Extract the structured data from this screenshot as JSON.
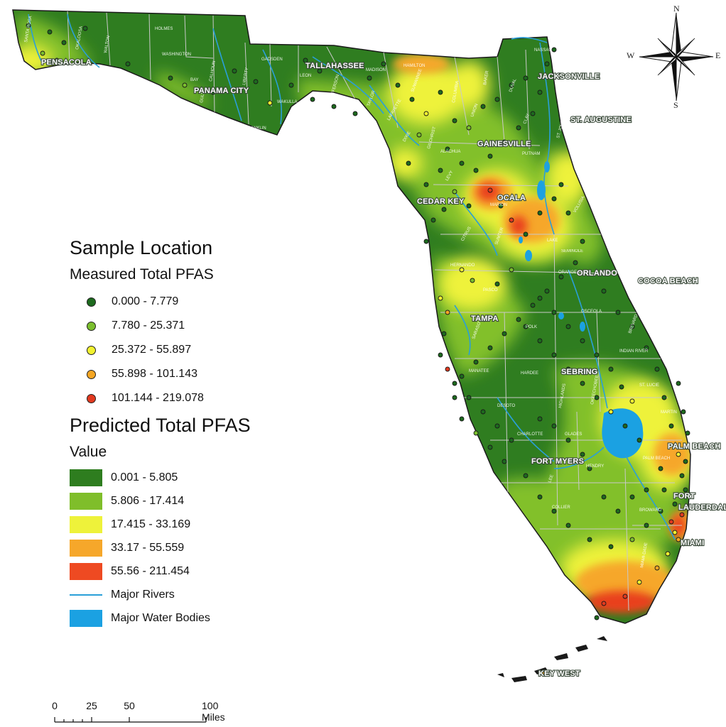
{
  "legend": {
    "sample_title": "Sample Location",
    "measured_title": "Measured Total PFAS",
    "measured_classes": [
      {
        "label": "0.000 - 7.779",
        "color": "#1d6a1e"
      },
      {
        "label": "7.780 - 25.371",
        "color": "#7bbf2e"
      },
      {
        "label": "25.372 - 55.897",
        "color": "#f2f230"
      },
      {
        "label": "55.898 - 101.143",
        "color": "#f5a623"
      },
      {
        "label": "101.144 - 219.078",
        "color": "#e2391f"
      }
    ],
    "predicted_title": "Predicted Total PFAS",
    "value_label": "Value",
    "predicted_classes": [
      {
        "label": "0.001 - 5.805",
        "color": "#2e7d1f"
      },
      {
        "label": "5.806 - 17.414",
        "color": "#7fbe2a"
      },
      {
        "label": "17.415 - 33.169",
        "color": "#eef23a"
      },
      {
        "label": "33.17 - 55.559",
        "color": "#f6a72a"
      },
      {
        "label": "55.56 - 211.454",
        "color": "#ee4a22"
      }
    ],
    "rivers_label": "Major Rivers",
    "water_label": "Major Water Bodies",
    "river_color": "#2a9fd8",
    "water_color": "#1ba1e2"
  },
  "cities": {
    "pensacola": "PENSACOLA",
    "panama_city": "PANAMA CITY",
    "tallahassee": "TALLAHASSEE",
    "jacksonville": "JACKSONVILLE",
    "st_augustine": "ST. AUGUSTINE",
    "gainesville": "GAINESVILLE",
    "ocala": "OCALA",
    "cedar_key": "CEDAR KEY",
    "orlando": "ORLANDO",
    "cocoa_beach": "COCOA BEACH",
    "tampa": "TAMPA",
    "sebring": "SEBRING",
    "palm_beach": "PALM BEACH",
    "fort_myers": "FORT MYERS",
    "fort": "FORT",
    "lauderdale": "LAUDERDALE",
    "miami": "MIAMI",
    "key_west": "KEY WEST"
  },
  "counties": {
    "holmes": "HOLMES",
    "walton": "WALTON",
    "washington": "WASHINGTON",
    "okaloosa": "OKALOOSA",
    "santa_rosa": "SANTA ROSA",
    "bay": "BAY",
    "calhoun": "CALHOUN",
    "gulf": "GULF",
    "liberty": "LIBERTY",
    "franklin": "FRANKLIN",
    "wakulla": "WAKULLA",
    "leon": "LEON",
    "gadsden": "GADSDEN",
    "jefferson": "JEFFERSON",
    "madison": "MADISON",
    "hamilton": "HAMILTON",
    "taylor": "TAYLOR",
    "suwannee": "SUWANNEE",
    "lafayette": "LAFAYETTE",
    "columbia": "COLUMBIA",
    "baker": "BAKER",
    "nassau": "NASSAU",
    "duval": "DUVAL",
    "union": "UNION",
    "clay": "CLAY",
    "st_johns": "ST. JOHNS",
    "alachua": "ALACHUA",
    "putnam": "PUTNAM",
    "levy": "LEVY",
    "gilchrist": "GILCHRIST",
    "dixie": "DIXIE",
    "marion": "MARION",
    "citrus": "CITRUS",
    "sumter": "SUMTER",
    "lake": "LAKE",
    "volusia": "VOLUSIA",
    "seminole": "SEMINOLE",
    "orange": "ORANGE",
    "hernando": "HERNANDO",
    "pasco": "PASCO",
    "osceola": "OSCEOLA",
    "polk": "POLK",
    "brevard": "BREVARD",
    "indian_river": "INDIAN RIVER",
    "manatee": "MANATEE",
    "hardee": "HARDEE",
    "desoto": "DESOTO",
    "highlands": "HIGHLANDS",
    "okeechobee": "OKEECHOBEE",
    "st_lucie": "ST. LUCIE",
    "martin": "MARTIN",
    "charlotte": "CHARLOTTE",
    "glades": "GLADES",
    "lee": "LEE",
    "hendry": "HENDRY",
    "collier": "COLLIER",
    "broward": "BROWARD",
    "dade": "MIAMI-DADE",
    "sarasota": "SARASOTA",
    "palm_beach_c": "PALM BEACH"
  },
  "compass": {
    "n": "N",
    "s": "S",
    "e": "E",
    "w": "W"
  },
  "scale": {
    "ticks": [
      "0",
      "25",
      "50",
      "100 Miles"
    ]
  }
}
